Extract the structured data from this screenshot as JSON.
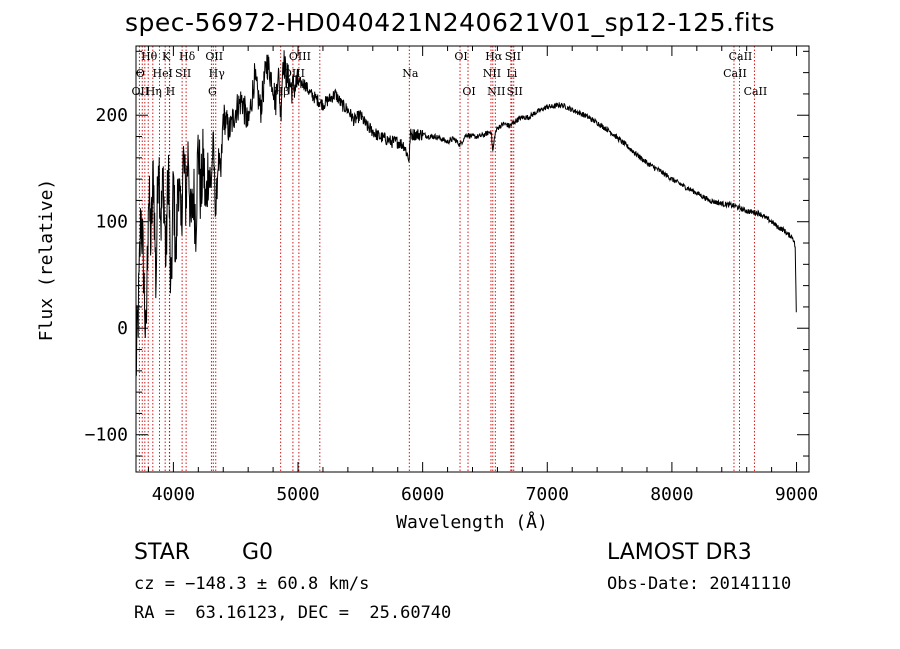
{
  "chart_data": {
    "type": "line",
    "title": "spec-56972-HD040421N240621V01_sp12-125.fits",
    "xlabel": "Wavelength (Å)",
    "ylabel": "Flux (relative)",
    "xlim": [
      3700,
      9100
    ],
    "ylim": [
      -135,
      265
    ],
    "xticks": [
      4000,
      5000,
      6000,
      7000,
      8000,
      9000
    ],
    "yticks": [
      -100,
      0,
      100,
      200
    ],
    "series": [
      {
        "name": "spectrum",
        "x": [
          3700,
          3720,
          3740,
          3760,
          3780,
          3800,
          3820,
          3840,
          3860,
          3880,
          3900,
          3920,
          3940,
          3960,
          3980,
          4000,
          4020,
          4040,
          4060,
          4080,
          4100,
          4120,
          4140,
          4160,
          4180,
          4200,
          4220,
          4240,
          4260,
          4280,
          4300,
          4320,
          4340,
          4360,
          4380,
          4400,
          4450,
          4500,
          4550,
          4600,
          4650,
          4700,
          4750,
          4800,
          4820,
          4840,
          4861,
          4880,
          4900,
          4950,
          5000,
          5050,
          5100,
          5150,
          5200,
          5250,
          5300,
          5350,
          5400,
          5450,
          5500,
          5550,
          5600,
          5650,
          5700,
          5750,
          5800,
          5850,
          5893,
          5900,
          5950,
          6000,
          6050,
          6100,
          6150,
          6200,
          6250,
          6300,
          6350,
          6400,
          6450,
          6500,
          6550,
          6563,
          6580,
          6600,
          6650,
          6700,
          6750,
          6800,
          6850,
          6900,
          6950,
          7000,
          7050,
          7100,
          7150,
          7200,
          7300,
          7400,
          7500,
          7600,
          7700,
          7800,
          7900,
          8000,
          8100,
          8200,
          8300,
          8400,
          8500,
          8600,
          8700,
          8800,
          8850,
          8900,
          8930,
          8950,
          8970,
          8980,
          8990,
          9000
        ],
        "values": [
          -40,
          20,
          110,
          60,
          -20,
          130,
          80,
          150,
          40,
          170,
          100,
          140,
          60,
          160,
          20,
          140,
          60,
          150,
          90,
          160,
          120,
          170,
          90,
          130,
          100,
          175,
          120,
          160,
          110,
          155,
          130,
          175,
          105,
          160,
          140,
          200,
          185,
          205,
          215,
          190,
          235,
          205,
          250,
          230,
          210,
          245,
          200,
          255,
          240,
          225,
          230,
          230,
          220,
          215,
          210,
          215,
          220,
          210,
          205,
          195,
          200,
          190,
          185,
          180,
          178,
          175,
          175,
          172,
          158,
          182,
          182,
          182,
          180,
          180,
          178,
          175,
          178,
          172,
          182,
          180,
          180,
          182,
          185,
          165,
          182,
          188,
          192,
          190,
          195,
          198,
          198,
          202,
          205,
          208,
          208,
          210,
          208,
          205,
          200,
          193,
          185,
          175,
          165,
          155,
          148,
          140,
          133,
          127,
          120,
          117,
          115,
          110,
          108,
          100,
          95,
          92,
          88,
          87,
          85,
          82,
          75,
          0
        ]
      }
    ],
    "lines": [
      {
        "label": "Hθ",
        "wavelength": 3798,
        "row": 1
      },
      {
        "label": "K",
        "wavelength": 3934,
        "row": 1
      },
      {
        "label": "Hδ",
        "wavelength": 4102,
        "row": 1
      },
      {
        "label": "OII",
        "wavelength": 4320,
        "row": 1
      },
      {
        "label": "OIII",
        "wavelength": 5007,
        "row": 1
      },
      {
        "label": "OI",
        "wavelength": 6300,
        "row": 1
      },
      {
        "label": "Hα",
        "wavelength": 6563,
        "row": 1
      },
      {
        "label": "SII",
        "wavelength": 6716,
        "row": 1
      },
      {
        "label": "CaII",
        "wavelength": 8542,
        "row": 1
      },
      {
        "label": "O",
        "wavelength": 3727,
        "row": 2
      },
      {
        "label": "He",
        "wavelength": 3889,
        "row": 2
      },
      {
        "label": "I",
        "wavelength": 3970,
        "row": 2
      },
      {
        "label": "SII",
        "wavelength": 4070,
        "row": 2
      },
      {
        "label": "Hγ",
        "wavelength": 4340,
        "row": 2
      },
      {
        "label": "OIII",
        "wavelength": 4959,
        "row": 2
      },
      {
        "label": "Na",
        "wavelength": 5893,
        "row": 2
      },
      {
        "label": "NII",
        "wavelength": 6548,
        "row": 2
      },
      {
        "label": "Li",
        "wavelength": 6708,
        "row": 2
      },
      {
        "label": "CaII",
        "wavelength": 8498,
        "row": 2
      },
      {
        "label": "OII",
        "wavelength": 3727,
        "row": 3
      },
      {
        "label": "Hη",
        "wavelength": 3835,
        "row": 3
      },
      {
        "label": "H",
        "wavelength": 3968,
        "row": 3
      },
      {
        "label": "G",
        "wavelength": 4305,
        "row": 3
      },
      {
        "label": "Hβ",
        "wavelength": 4861,
        "row": 3
      },
      {
        "label": "OI",
        "wavelength": 6364,
        "row": 3
      },
      {
        "label": "NII",
        "wavelength": 6583,
        "row": 3
      },
      {
        "label": "SII",
        "wavelength": 6731,
        "row": 3
      },
      {
        "label": "CaII",
        "wavelength": 8662,
        "row": 3
      }
    ],
    "extra_line_wavelengths": [
      3750,
      3771,
      3889,
      3934,
      4102,
      4320,
      4861,
      5175
    ],
    "line_color": "#cc0000"
  },
  "info": {
    "object_class": "STAR",
    "subclass": "G0",
    "survey": "LAMOST DR3",
    "cz": "cz = −148.3 ± 60.8 km/s",
    "obs_date": "Obs-Date: 20141110",
    "coords": "RA =  63.16123, DEC =  25.60740"
  }
}
